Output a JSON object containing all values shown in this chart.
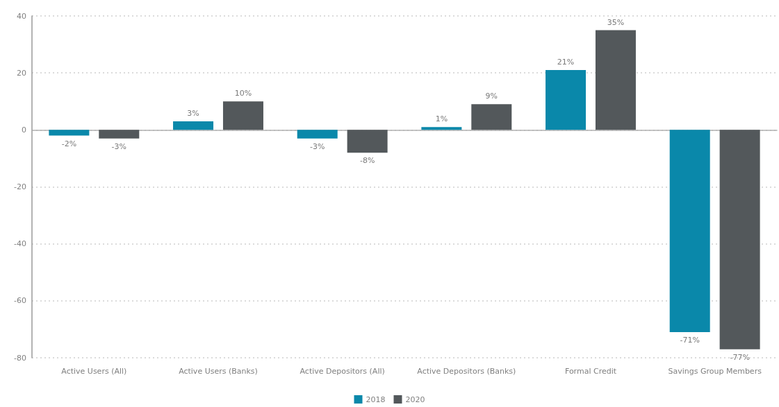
{
  "chart_data": {
    "type": "bar",
    "categories": [
      "Active Users (All)",
      "Active Users (Banks)",
      "Active Depositors (All)",
      "Active Depositors (Banks)",
      "Formal Credit",
      "Savings Group Members"
    ],
    "series": [
      {
        "name": "2018",
        "color": "#0a88aa",
        "values": [
          -2,
          3,
          -3,
          1,
          21,
          -71
        ],
        "value_labels": [
          "-2%",
          "3%",
          "-3%",
          "1%",
          "21%",
          "-71%"
        ]
      },
      {
        "name": "2020",
        "color": "#53585b",
        "values": [
          -3,
          10,
          -8,
          9,
          35,
          -77
        ],
        "value_labels": [
          "-3%",
          "10%",
          "-8%",
          "9%",
          "35%",
          "-77%"
        ]
      }
    ],
    "ylim": [
      -80,
      40
    ],
    "yticks": [
      -80,
      -60,
      -40,
      -20,
      0,
      20,
      40
    ],
    "grid": "y",
    "legend": "bottom"
  }
}
